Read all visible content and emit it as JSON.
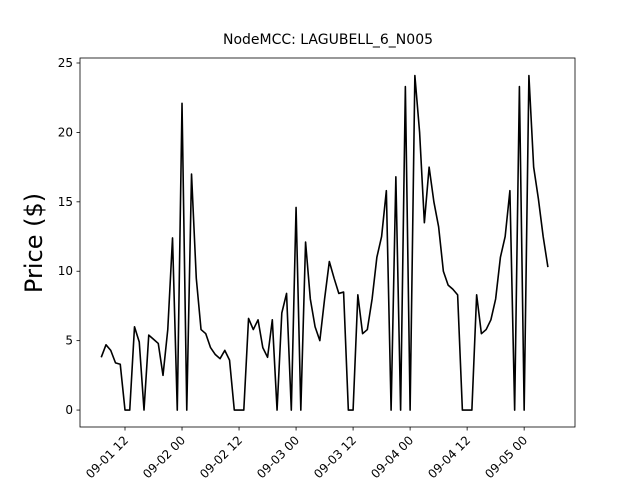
{
  "chart_data": {
    "type": "line",
    "title": "NodeMCC: LAGUBELL_6_N005",
    "ylabel": "Price ($)",
    "color": "#000000",
    "x": [
      7,
      8,
      9,
      10,
      11,
      12,
      13,
      14,
      15,
      16,
      17,
      18,
      19,
      20,
      21,
      22,
      23,
      24,
      25,
      26,
      27,
      28,
      29,
      30,
      31,
      32,
      33,
      34,
      35,
      36,
      37,
      38,
      39,
      40,
      41,
      42,
      43,
      44,
      45,
      46,
      47,
      48,
      49,
      50,
      51,
      52,
      53,
      54,
      55,
      56,
      57,
      58,
      59,
      60,
      61,
      62,
      63,
      64,
      65,
      66,
      67,
      68,
      69,
      70,
      71,
      72,
      73,
      74,
      75,
      76,
      77,
      78,
      79,
      80,
      81,
      82,
      83,
      84,
      85,
      86,
      87,
      88,
      89,
      90,
      91,
      92,
      93,
      94,
      95,
      96,
      97,
      98,
      99,
      100,
      101
    ],
    "values": [
      3.8,
      4.7,
      4.3,
      3.4,
      3.3,
      0,
      0,
      6.0,
      4.9,
      0,
      5.4,
      5.1,
      4.8,
      2.5,
      5.8,
      12.4,
      0,
      22.1,
      0,
      17.0,
      9.5,
      5.8,
      5.5,
      4.5,
      4.0,
      3.7,
      4.3,
      3.6,
      0,
      0,
      0,
      6.6,
      5.8,
      6.5,
      4.5,
      3.8,
      6.5,
      0,
      7.0,
      8.4,
      0,
      14.6,
      0,
      12.1,
      8.0,
      6.0,
      5.0,
      8.0,
      10.7,
      9.5,
      8.4,
      8.5,
      0,
      0,
      8.3,
      5.5,
      5.8,
      8.0,
      11.0,
      12.5,
      15.8,
      0,
      16.8,
      0,
      23.3,
      0,
      24.1,
      20.0,
      13.5,
      17.5,
      15.0,
      13.2,
      10.0,
      9.0,
      8.7,
      8.3,
      0,
      0,
      0,
      8.3,
      5.5,
      5.8,
      6.5,
      8.0,
      11.0,
      12.5,
      15.8,
      0,
      23.3,
      0,
      24.1,
      17.5,
      15.2,
      12.5,
      10.3
    ],
    "xlim": [
      2.53,
      106.7
    ],
    "xticks": [
      {
        "value": 12,
        "label": "09-01 12"
      },
      {
        "value": 24,
        "label": "09-02 00"
      },
      {
        "value": 36,
        "label": "09-02 12"
      },
      {
        "value": 48,
        "label": "09-03 00"
      },
      {
        "value": 60,
        "label": "09-03 12"
      },
      {
        "value": 72,
        "label": "09-04 00"
      },
      {
        "value": 84,
        "label": "09-04 12"
      },
      {
        "value": 96,
        "label": "09-05 00"
      }
    ],
    "ylim": [
      -1.22,
      25.36
    ],
    "yticks": [
      0,
      5,
      10,
      15,
      20,
      25
    ]
  }
}
